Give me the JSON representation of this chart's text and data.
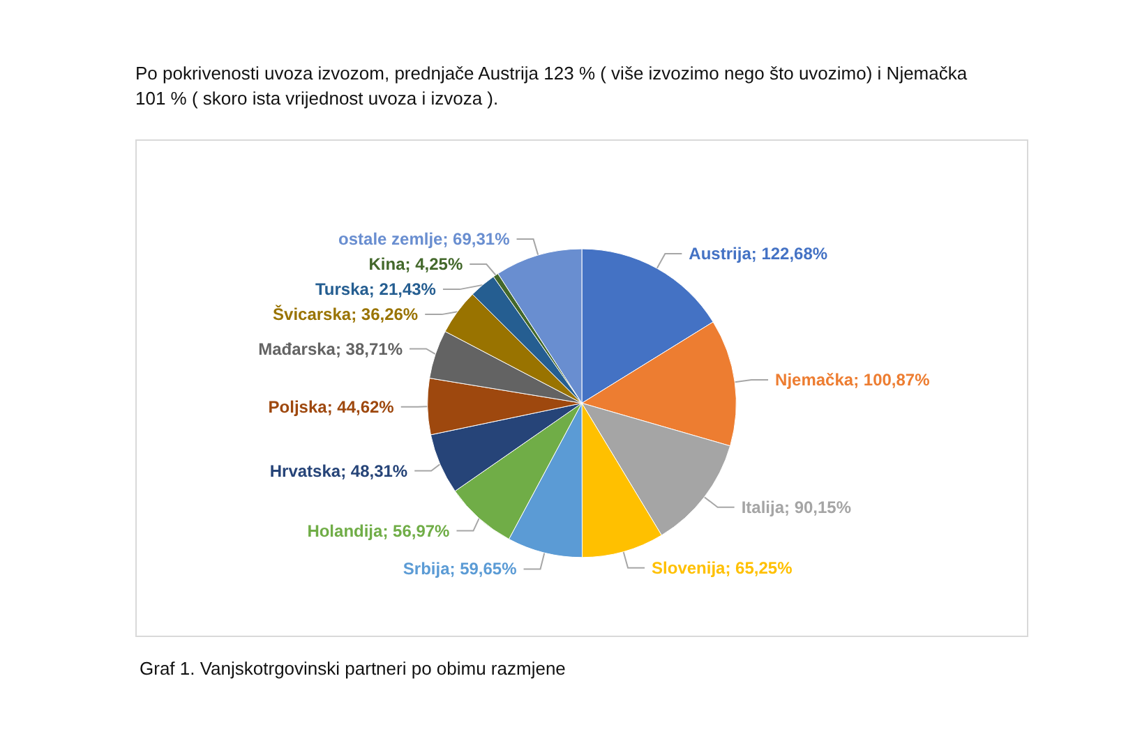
{
  "chart_data": {
    "type": "pie",
    "title": "Po pokrivenosti uvoza izvozom, prednjače Austrija 123 % ( više izvozimo nego što uvozimo) i Njemačka  101 % ( skoro ista vrijednost uvoza i izvoza ).",
    "categories": [
      "Austrija",
      "Njemačka",
      "Italija",
      "Slovenija",
      "Srbija",
      "Holandija",
      "Hrvatska",
      "Poljska",
      "Mađarska",
      "Švicarska",
      "Turska",
      "Kina",
      "ostale zemlje"
    ],
    "values": [
      122.68,
      100.87,
      90.15,
      65.25,
      59.65,
      56.97,
      48.31,
      44.62,
      38.71,
      36.26,
      21.43,
      4.25,
      69.31
    ],
    "value_labels": [
      "122,68%",
      "100,87%",
      "90,15%",
      "65,25%",
      "59,65%",
      "56,97%",
      "48,31%",
      "44,62%",
      "38,71%",
      "36,26%",
      "21,43%",
      "4,25%",
      "69,31%"
    ],
    "colors": [
      "#4472c4",
      "#ed7d31",
      "#a5a5a5",
      "#ffc000",
      "#5b9bd5",
      "#70ad47",
      "#264478",
      "#9e480e",
      "#636363",
      "#997300",
      "#255e91",
      "#43682b",
      "#698ed0"
    ],
    "annotations": [
      "Graf 1. Vanjskotrgovinski partneri po obimu razmjene"
    ],
    "legend": false
  }
}
